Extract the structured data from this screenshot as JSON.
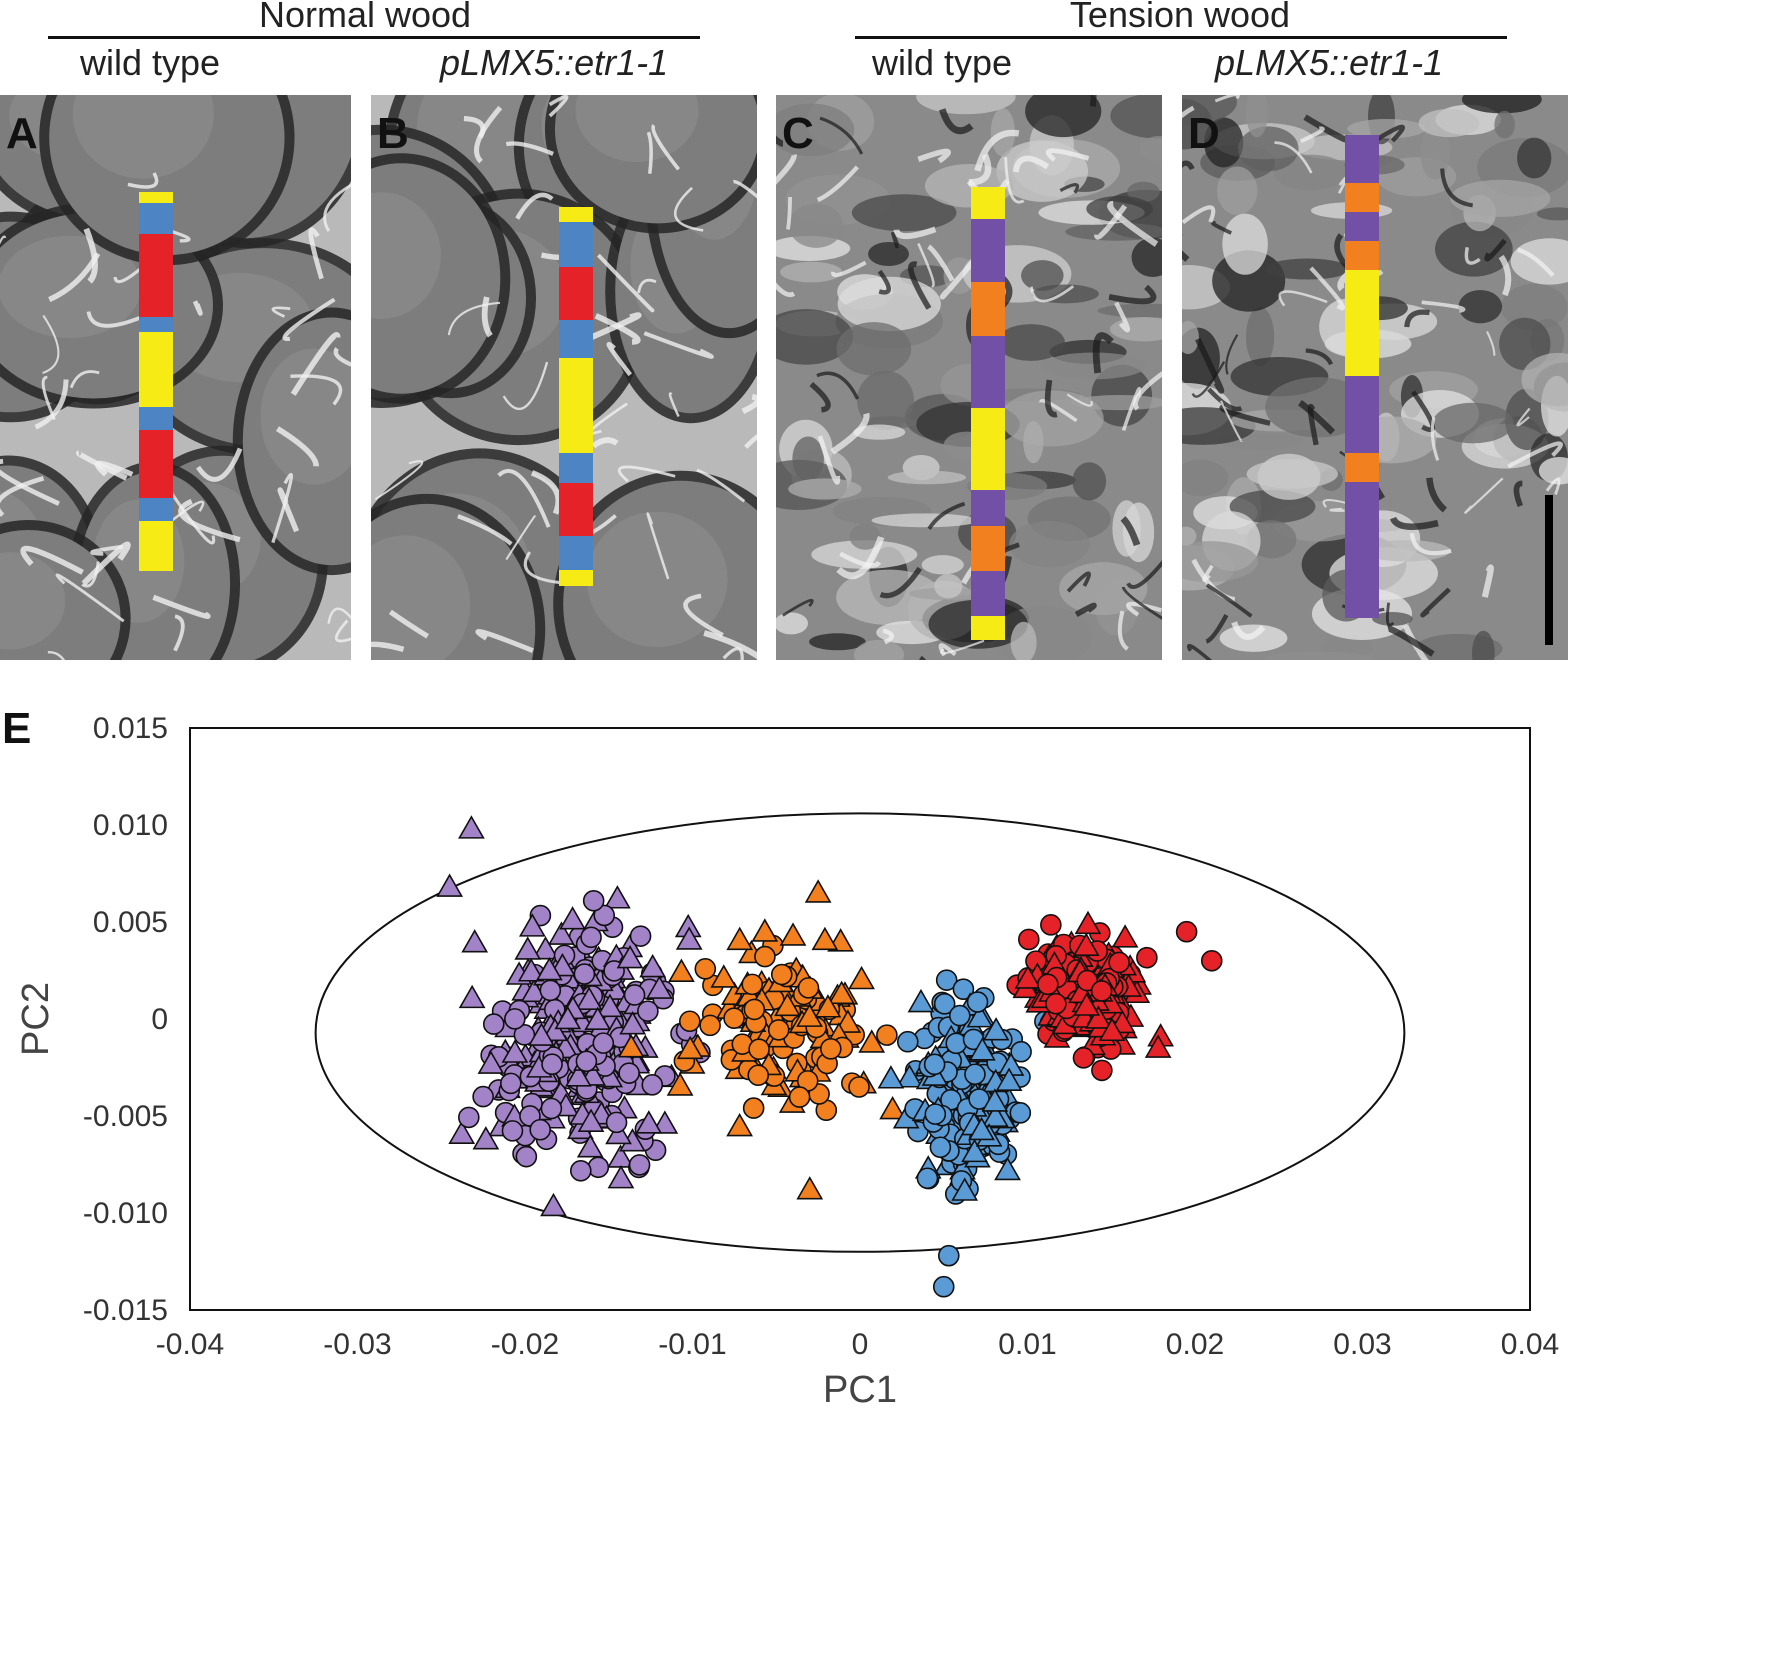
{
  "header": {
    "normal_group": "Normal wood",
    "tension_group": "Tension wood",
    "columns": [
      "wild type",
      "pLMX5::etr1-1",
      "wild type",
      "pLMX5::etr1-1"
    ]
  },
  "colors": {
    "yellow": "#f6eb15",
    "blue": "#4d84c4",
    "red": "#e42227",
    "purple": "#7150a5",
    "orange": "#f2801f",
    "plot_purple": "#a383c8",
    "plot_orange": "#f2801f",
    "plot_blue": "#5b9bd5",
    "plot_red": "#e42227"
  },
  "panels": [
    {
      "letter": "A",
      "strip": [
        [
          "yellow",
          0.03
        ],
        [
          "blue",
          0.08
        ],
        [
          "red",
          0.22
        ],
        [
          "blue",
          0.04
        ],
        [
          "yellow",
          0.2
        ],
        [
          "blue",
          0.06
        ],
        [
          "red",
          0.18
        ],
        [
          "blue",
          0.06
        ],
        [
          "yellow",
          0.13
        ]
      ]
    },
    {
      "letter": "B",
      "strip": [
        [
          "yellow",
          0.04
        ],
        [
          "blue",
          0.12
        ],
        [
          "red",
          0.14
        ],
        [
          "blue",
          0.1
        ],
        [
          "yellow",
          0.25
        ],
        [
          "blue",
          0.08
        ],
        [
          "red",
          0.14
        ],
        [
          "blue",
          0.09
        ],
        [
          "yellow",
          0.04
        ]
      ]
    },
    {
      "letter": "C",
      "strip": [
        [
          "yellow",
          0.07
        ],
        [
          "purple",
          0.14
        ],
        [
          "orange",
          0.12
        ],
        [
          "purple",
          0.16
        ],
        [
          "yellow",
          0.18
        ],
        [
          "purple",
          0.08
        ],
        [
          "orange",
          0.1
        ],
        [
          "purple",
          0.1
        ],
        [
          "yellow",
          0.05
        ]
      ]
    },
    {
      "letter": "D",
      "strip": [
        [
          "purple",
          0.1
        ],
        [
          "orange",
          0.06
        ],
        [
          "purple",
          0.06
        ],
        [
          "orange",
          0.06
        ],
        [
          "yellow",
          0.22
        ],
        [
          "purple",
          0.16
        ],
        [
          "orange",
          0.06
        ],
        [
          "purple",
          0.28
        ]
      ]
    }
  ],
  "plot": {
    "letter": "E",
    "chart_data": {
      "type": "scatter",
      "xlabel": "PC1",
      "ylabel": "PC2",
      "xlim": [
        -0.04,
        0.04
      ],
      "ylim": [
        -0.015,
        0.015
      ],
      "x_ticks": [
        "-0.04",
        "-0.03",
        "-0.02",
        "-0.01",
        "0",
        "0.01",
        "0.02",
        "0.03",
        "0.04"
      ],
      "y_ticks": [
        "0.015",
        "0.010",
        "0.005",
        "0",
        "-0.005",
        "-0.010",
        "-0.015"
      ],
      "grid": false,
      "ellipse": {
        "center": [
          0.0,
          -0.0007
        ],
        "radius_x": 0.0325,
        "radius_y": 0.0113
      },
      "clusters": [
        {
          "color": "plot_purple",
          "center": [
            -0.0165,
            -0.001
          ],
          "spread": [
            0.0045,
            0.0048
          ],
          "count": 320,
          "seed": 11
        },
        {
          "color": "plot_orange",
          "center": [
            -0.0045,
            -0.0005
          ],
          "spread": [
            0.0042,
            0.0033
          ],
          "count": 150,
          "seed": 23
        },
        {
          "color": "plot_blue",
          "center": [
            0.0065,
            -0.004
          ],
          "spread": [
            0.0025,
            0.0038
          ],
          "count": 220,
          "seed": 37
        },
        {
          "color": "plot_red",
          "center": [
            0.0135,
            0.0015
          ],
          "spread": [
            0.0027,
            0.0023
          ],
          "count": 260,
          "seed": 53
        }
      ],
      "extra_points": [
        {
          "color": "plot_blue",
          "shape": "circle",
          "x": 0.005,
          "y": -0.0138
        },
        {
          "color": "plot_blue",
          "shape": "circle",
          "x": 0.0053,
          "y": -0.0122
        },
        {
          "color": "plot_red",
          "shape": "circle",
          "x": 0.021,
          "y": 0.003
        },
        {
          "color": "plot_red",
          "shape": "circle",
          "x": 0.0195,
          "y": 0.0045
        },
        {
          "color": "plot_purple",
          "shape": "triangle",
          "x": -0.0245,
          "y": 0.0068
        },
        {
          "color": "plot_purple",
          "shape": "triangle",
          "x": -0.0232,
          "y": 0.0098
        },
        {
          "color": "plot_purple",
          "shape": "circle",
          "x": -0.0225,
          "y": -0.004
        },
        {
          "color": "plot_orange",
          "shape": "triangle",
          "x": -0.0025,
          "y": 0.0065
        },
        {
          "color": "plot_orange",
          "shape": "triangle",
          "x": -0.003,
          "y": -0.0088
        },
        {
          "color": "plot_red",
          "shape": "triangle",
          "x": 0.0178,
          "y": -0.0015
        }
      ]
    }
  }
}
